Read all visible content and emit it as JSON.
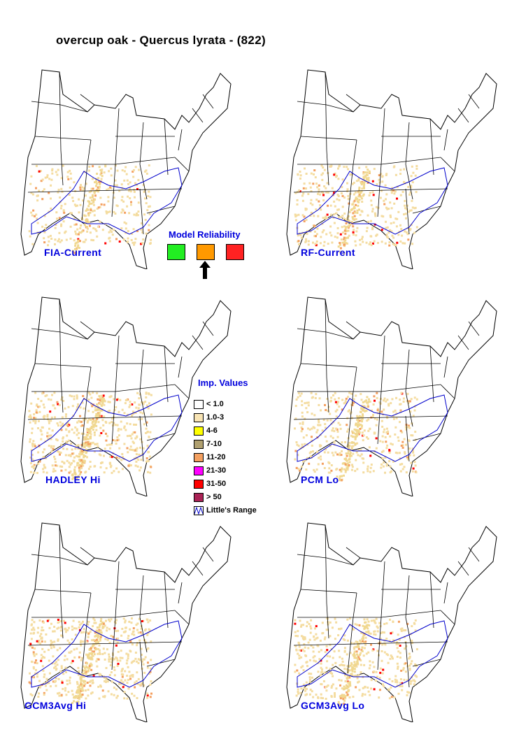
{
  "title": "overcup oak - Quercus lyrata - (822)",
  "panels": [
    {
      "label": "FIA-Current",
      "intensity": 0.6
    },
    {
      "label": "RF-Current",
      "intensity": 0.75
    },
    {
      "label": "HADLEY Hi",
      "intensity": 1.0
    },
    {
      "label": "PCM Lo",
      "intensity": 0.8
    },
    {
      "label": "GCM3Avg Hi",
      "intensity": 1.0
    },
    {
      "label": "GCM3Avg Lo",
      "intensity": 0.85
    }
  ],
  "model_reliability": {
    "title": "Model Reliability",
    "levels": [
      {
        "color": "#22ee22"
      },
      {
        "color": "#ff9900",
        "selected": true
      },
      {
        "color": "#ff2222"
      }
    ]
  },
  "legend": {
    "title": "Imp. Values",
    "items": [
      {
        "label": "< 1.0",
        "color": "#ffffff"
      },
      {
        "label": "1.0-3",
        "color": "#f8e4b4"
      },
      {
        "label": "4-6",
        "color": "#ffff00"
      },
      {
        "label": "7-10",
        "color": "#b0a070"
      },
      {
        "label": "11-20",
        "color": "#f4a060"
      },
      {
        "label": "21-30",
        "color": "#ff00ff"
      },
      {
        "label": "31-50",
        "color": "#ff0000"
      },
      {
        "label": "> 50",
        "color": "#aa2255"
      },
      {
        "label": "Little's Range",
        "color": "range-icon"
      }
    ]
  }
}
